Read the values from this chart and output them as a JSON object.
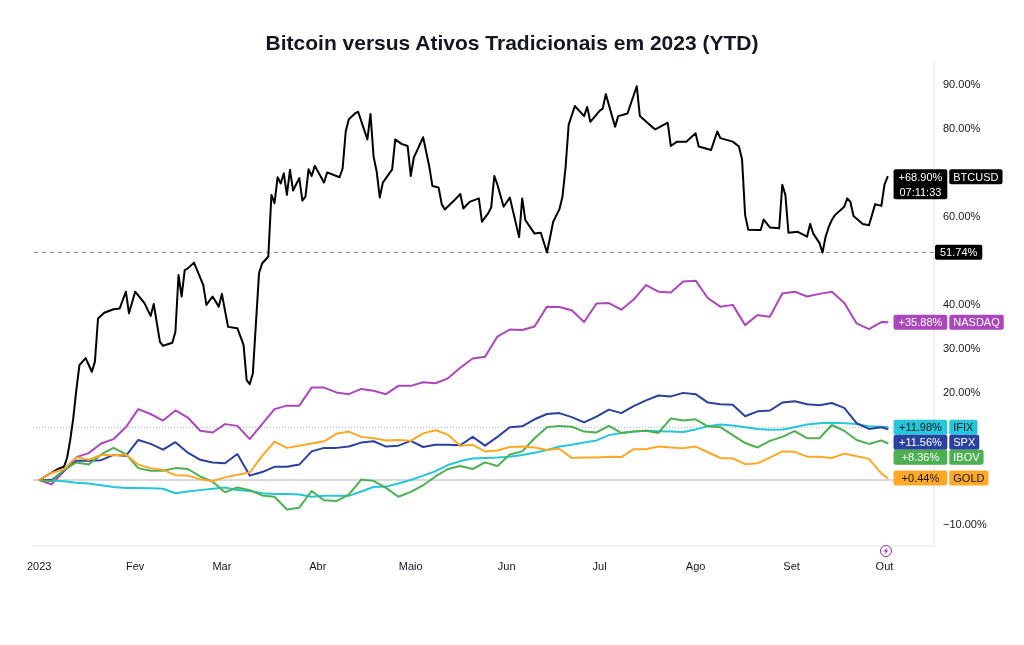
{
  "chart_data": {
    "type": "line",
    "title": "Bitcoin versus Ativos Tradicionais em 2023 (YTD)",
    "x": [
      "2023-01-01",
      "2023-01-05",
      "2023-01-09",
      "2023-01-13",
      "2023-01-17",
      "2023-01-21",
      "2023-01-25",
      "2023-01-29",
      "2023-02-02",
      "2023-02-06",
      "2023-02-10",
      "2023-02-14",
      "2023-02-18",
      "2023-02-22",
      "2023-02-26",
      "2023-03-02",
      "2023-03-06",
      "2023-03-10",
      "2023-03-14",
      "2023-03-18",
      "2023-03-22",
      "2023-03-26",
      "2023-03-30",
      "2023-04-03",
      "2023-04-07",
      "2023-04-11",
      "2023-04-15",
      "2023-04-19",
      "2023-04-23",
      "2023-04-27",
      "2023-05-01",
      "2023-05-05",
      "2023-05-09",
      "2023-05-13",
      "2023-05-17",
      "2023-05-21",
      "2023-05-25",
      "2023-05-29",
      "2023-06-02",
      "2023-06-06",
      "2023-06-10",
      "2023-06-14",
      "2023-06-18",
      "2023-06-22",
      "2023-06-26",
      "2023-06-30",
      "2023-07-04",
      "2023-07-08",
      "2023-07-12",
      "2023-07-16",
      "2023-07-20",
      "2023-07-24",
      "2023-07-28",
      "2023-08-01",
      "2023-08-05",
      "2023-08-09",
      "2023-08-13",
      "2023-08-17",
      "2023-08-21",
      "2023-08-25",
      "2023-08-29",
      "2023-09-02",
      "2023-09-06",
      "2023-09-10",
      "2023-09-14",
      "2023-09-18",
      "2023-09-22",
      "2023-09-26",
      "2023-09-30",
      "2023-10-02"
    ],
    "series": [
      {
        "name": "BTCUSD",
        "color": "#000000",
        "x": [
          "2023-01-01",
          "2023-01-07",
          "2023-01-09",
          "2023-01-10",
          "2023-01-11",
          "2023-01-12",
          "2023-01-13",
          "2023-01-14",
          "2023-01-16",
          "2023-01-18",
          "2023-01-19",
          "2023-01-20",
          "2023-01-22",
          "2023-01-25",
          "2023-01-27",
          "2023-01-29",
          "2023-01-30",
          "2023-02-01",
          "2023-02-04",
          "2023-02-06",
          "2023-02-07",
          "2023-02-09",
          "2023-02-10",
          "2023-02-13",
          "2023-02-14",
          "2023-02-15",
          "2023-02-16",
          "2023-02-17",
          "2023-02-18",
          "2023-02-20",
          "2023-02-23",
          "2023-02-24",
          "2023-02-26",
          "2023-02-28",
          "2023-03-01",
          "2023-03-03",
          "2023-03-06",
          "2023-03-08",
          "2023-03-09",
          "2023-03-10",
          "2023-03-11",
          "2023-03-12",
          "2023-03-13",
          "2023-03-14",
          "2023-03-16",
          "2023-03-17",
          "2023-03-18",
          "2023-03-19",
          "2023-03-20",
          "2023-03-21",
          "2023-03-22",
          "2023-03-23",
          "2023-03-24",
          "2023-03-26",
          "2023-03-27",
          "2023-03-28",
          "2023-03-29",
          "2023-03-30",
          "2023-03-31",
          "2023-04-03",
          "2023-04-04",
          "2023-04-08",
          "2023-04-09",
          "2023-04-10",
          "2023-04-11",
          "2023-04-13",
          "2023-04-14",
          "2023-04-17",
          "2023-04-18",
          "2023-04-19",
          "2023-04-20",
          "2023-04-21",
          "2023-04-22",
          "2023-04-25",
          "2023-04-26",
          "2023-04-28",
          "2023-04-30",
          "2023-05-01",
          "2023-05-02",
          "2023-05-03",
          "2023-05-05",
          "2023-05-07",
          "2023-05-08",
          "2023-05-10",
          "2023-05-11",
          "2023-05-12",
          "2023-05-15",
          "2023-05-17",
          "2023-05-18",
          "2023-05-20",
          "2023-05-23",
          "2023-05-24",
          "2023-05-26",
          "2023-05-27",
          "2023-05-28",
          "2023-05-29",
          "2023-05-31",
          "2023-06-02",
          "2023-06-05",
          "2023-06-06",
          "2023-06-07",
          "2023-06-10",
          "2023-06-12",
          "2023-06-14",
          "2023-06-15",
          "2023-06-16",
          "2023-06-18",
          "2023-06-19",
          "2023-06-20",
          "2023-06-21",
          "2023-06-23",
          "2023-06-26",
          "2023-06-27",
          "2023-06-28",
          "2023-07-01",
          "2023-07-02",
          "2023-07-03",
          "2023-07-06",
          "2023-07-07",
          "2023-07-10",
          "2023-07-13",
          "2023-07-14",
          "2023-07-18",
          "2023-07-19",
          "2023-07-23",
          "2023-07-24",
          "2023-07-26",
          "2023-07-29",
          "2023-08-01",
          "2023-08-02",
          "2023-08-06",
          "2023-08-08",
          "2023-08-09",
          "2023-08-13",
          "2023-08-15",
          "2023-08-16",
          "2023-08-17",
          "2023-08-18",
          "2023-08-22",
          "2023-08-23",
          "2023-08-25",
          "2023-08-28",
          "2023-08-29",
          "2023-08-30",
          "2023-08-31",
          "2023-09-03",
          "2023-09-06",
          "2023-09-07",
          "2023-09-08",
          "2023-09-10",
          "2023-09-11",
          "2023-09-12",
          "2023-09-13",
          "2023-09-14",
          "2023-09-15",
          "2023-09-18",
          "2023-09-19",
          "2023-09-20",
          "2023-09-21",
          "2023-09-24",
          "2023-09-26",
          "2023-09-28",
          "2023-09-30",
          "2023-10-01",
          "2023-10-02"
        ],
        "values": [
          0,
          2.5,
          3,
          5,
          9,
          14,
          20.5,
          26.1,
          27.7,
          24.6,
          26.9,
          36.7,
          38,
          38.8,
          39,
          42.8,
          37.9,
          42.8,
          40.2,
          37.3,
          40,
          31.4,
          30.5,
          31.2,
          33.7,
          46.6,
          41.7,
          47.7,
          48.1,
          49.4,
          44.3,
          39.8,
          41.7,
          39.4,
          42.3,
          34.8,
          34.5,
          30.7,
          22.7,
          21.8,
          24.2,
          35.6,
          47,
          49.2,
          50.8,
          64.8,
          62.9,
          68.8,
          67.4,
          69.7,
          64.8,
          70.5,
          65.8,
          68.6,
          63.5,
          64.4,
          70.6,
          69.1,
          71.4,
          67.6,
          69.9,
          68.8,
          70.8,
          79.2,
          82,
          83.3,
          83.7,
          77.4,
          83.2,
          73.5,
          70.1,
          64.2,
          67.6,
          70.6,
          77.4,
          76.4,
          75.9,
          69.1,
          73.3,
          74.8,
          77.9,
          71.2,
          66.8,
          66.5,
          62.7,
          61.5,
          63.5,
          65,
          61.7,
          63.2,
          64,
          58.7,
          60.6,
          62,
          69.1,
          67.1,
          62.1,
          64.2,
          55.2,
          64,
          59.1,
          56,
          56.2,
          51.7,
          55.1,
          58.7,
          61.5,
          64.4,
          71,
          80.7,
          85,
          82.7,
          84.8,
          81.4,
          83.9,
          84.4,
          87.7,
          80.3,
          82.7,
          83.3,
          89.5,
          82.7,
          80.2,
          79.7,
          81.2,
          75.9,
          76.9,
          76.9,
          78.8,
          75.8,
          75,
          79.2,
          77.7,
          76.9,
          75.8,
          72.9,
          60.2,
          56.9,
          56.8,
          59.2,
          57.4,
          57.2,
          67.1,
          64.8,
          56.2,
          56.4,
          55.3,
          58.2,
          56,
          53.9,
          51.7,
          55.3,
          57.5,
          59.1,
          60.2,
          62.1,
          64,
          63.2,
          60,
          58.2,
          57.9,
          62.7,
          62.3,
          67.1,
          68.9
        ],
        "value_labels": [
          null,
          null,
          null,
          null,
          null,
          null,
          null,
          null,
          null,
          null,
          null,
          null,
          null,
          null,
          null,
          null,
          null,
          null,
          null,
          null,
          null,
          null,
          null,
          null,
          null,
          null,
          null,
          null,
          null,
          null,
          null,
          null,
          null,
          null,
          null,
          null,
          null,
          null,
          null,
          null,
          null,
          null,
          null,
          null,
          null,
          null,
          null,
          null,
          null,
          null,
          null,
          null,
          null,
          null,
          null,
          null,
          null,
          null,
          null,
          null,
          null,
          null,
          null,
          null,
          null,
          null,
          null,
          null,
          null,
          null,
          null,
          null,
          null,
          null,
          null,
          null,
          null,
          null,
          null,
          null,
          null,
          null,
          null,
          null,
          null,
          null,
          null,
          null,
          null,
          null,
          null,
          null,
          null,
          null,
          null,
          null,
          null,
          null,
          null,
          null,
          null,
          null,
          null,
          null,
          null,
          null,
          null,
          null,
          null,
          null,
          null,
          null,
          null,
          null,
          null,
          null,
          null,
          null,
          null,
          null,
          null,
          null,
          null,
          null,
          null,
          null,
          null,
          null,
          null,
          null,
          null,
          null,
          null,
          null,
          null,
          null,
          null,
          null,
          null,
          null,
          null,
          null,
          null,
          null,
          null,
          null,
          null,
          null,
          null,
          null,
          null,
          null,
          null,
          null,
          null,
          null,
          null,
          null,
          null,
          null,
          null,
          null,
          null,
          null,
          "+68.90%"
        ]
      },
      {
        "name": "NASDAQ",
        "color": "#ab47bc",
        "values": [
          0,
          -1,
          2,
          5.2,
          6.1,
          8.3,
          9.3,
          12,
          16.1,
          15,
          13.5,
          15.8,
          14.2,
          11.2,
          10.8,
          12.7,
          12.3,
          9.3,
          12.7,
          16.1,
          16.9,
          16.9,
          21,
          21,
          19.9,
          19.5,
          20.7,
          20.3,
          19.5,
          21.4,
          21.4,
          22.2,
          22,
          23.1,
          25.5,
          27.6,
          28,
          32.6,
          34.2,
          34.1,
          34.9,
          39.4,
          39.3,
          38.6,
          35.9,
          40.1,
          40.2,
          38.7,
          41,
          44.3,
          42.8,
          42.6,
          45.1,
          45.3,
          41.3,
          39.4,
          39.8,
          35.2,
          37.5,
          37.1,
          42.4,
          42.8,
          41.7,
          42.3,
          42.8,
          40.3,
          35.6,
          34.3,
          35.9,
          35.88
        ],
        "value_labels": [
          null,
          null,
          null,
          null,
          null,
          null,
          null,
          null,
          null,
          null,
          null,
          null,
          null,
          null,
          null,
          null,
          null,
          null,
          null,
          null,
          null,
          null,
          null,
          null,
          null,
          null,
          null,
          null,
          null,
          null,
          null,
          null,
          null,
          null,
          null,
          null,
          null,
          null,
          null,
          null,
          null,
          null,
          null,
          null,
          null,
          null,
          null,
          null,
          null,
          null,
          null,
          null,
          null,
          null,
          null,
          null,
          null,
          null,
          null,
          null,
          null,
          null,
          null,
          null,
          null,
          null,
          null,
          null,
          null,
          "+35.88%"
        ]
      },
      {
        "name": "IFIX",
        "color": "#26c6da",
        "values": [
          0,
          -0.1,
          -0.3,
          -0.6,
          -0.8,
          -1.2,
          -1.6,
          -1.8,
          -1.8,
          -1.9,
          -2,
          -3,
          -2.6,
          -2.3,
          -2,
          -1.7,
          -2.3,
          -2.5,
          -3,
          -3.2,
          -3.2,
          -3.3,
          -3.8,
          -3.6,
          -3.6,
          -3.6,
          -2.6,
          -1.6,
          -1.5,
          -0.8,
          0,
          1,
          2,
          3.4,
          4.3,
          4.9,
          5,
          5.1,
          5.3,
          5.7,
          6.2,
          6.8,
          7.6,
          8,
          8.5,
          9,
          10.2,
          10.7,
          11,
          11.2,
          11.1,
          11,
          10.9,
          11.5,
          12.2,
          12.6,
          12.4,
          12,
          11.6,
          11.4,
          11.5,
          12,
          12.6,
          12.9,
          13,
          12.9,
          12.7,
          12.2,
          12.1,
          11.98
        ],
        "value_labels": [
          null,
          null,
          null,
          null,
          null,
          null,
          null,
          null,
          null,
          null,
          null,
          null,
          null,
          null,
          null,
          null,
          null,
          null,
          null,
          null,
          null,
          null,
          null,
          null,
          null,
          null,
          null,
          null,
          null,
          null,
          null,
          null,
          null,
          null,
          null,
          null,
          null,
          null,
          null,
          null,
          null,
          null,
          null,
          null,
          null,
          null,
          null,
          null,
          null,
          null,
          null,
          null,
          null,
          null,
          null,
          null,
          null,
          null,
          null,
          null,
          null,
          null,
          null,
          null,
          null,
          null,
          null,
          null,
          null,
          "+11.98%"
        ]
      },
      {
        "name": "SPX",
        "color": "#2a41a0",
        "values": [
          0,
          0,
          2.1,
          4.4,
          4.4,
          4.5,
          5.7,
          5.5,
          9.1,
          8.2,
          6.9,
          8.6,
          6.2,
          4.6,
          4,
          3.8,
          5.9,
          1,
          1.8,
          3,
          3,
          3.5,
          6.5,
          7.3,
          7.3,
          7.6,
          8.5,
          8.8,
          7.6,
          7.8,
          8.9,
          7.5,
          8,
          8,
          7.9,
          9.8,
          7.8,
          9.8,
          12,
          12.2,
          13.8,
          15,
          15.2,
          14.3,
          13.1,
          14.4,
          16,
          15.2,
          16.8,
          18.1,
          19.2,
          19,
          19.8,
          19.5,
          17.6,
          17.2,
          17.1,
          14.5,
          15.6,
          15.8,
          17.6,
          17.9,
          17.2,
          17,
          17.5,
          16.4,
          12.9,
          11.6,
          12,
          11.56
        ],
        "value_labels": [
          null,
          null,
          null,
          null,
          null,
          null,
          null,
          null,
          null,
          null,
          null,
          null,
          null,
          null,
          null,
          null,
          null,
          null,
          null,
          null,
          null,
          null,
          null,
          null,
          null,
          null,
          null,
          null,
          null,
          null,
          null,
          null,
          null,
          null,
          null,
          null,
          null,
          null,
          null,
          null,
          null,
          null,
          null,
          null,
          null,
          null,
          null,
          null,
          null,
          null,
          null,
          null,
          null,
          null,
          null,
          null,
          null,
          null,
          null,
          null,
          null,
          null,
          null,
          null,
          null,
          null,
          null,
          null,
          null,
          "+11.56%"
        ]
      },
      {
        "name": "IBOV",
        "color": "#4caf50",
        "values": [
          0,
          -0.3,
          2.3,
          4,
          3.5,
          5.8,
          7.3,
          5.9,
          2.7,
          2.1,
          2.1,
          2.7,
          2.5,
          0.8,
          -0.4,
          -2.8,
          -1.7,
          -2.3,
          -3.5,
          -3.8,
          -6.7,
          -6.3,
          -2.5,
          -4.6,
          -4.8,
          -3.3,
          0.1,
          -0.2,
          -1.8,
          -3.8,
          -2.7,
          -1.2,
          0.8,
          2.5,
          3.2,
          2.5,
          4,
          3.2,
          5.8,
          6.5,
          9.5,
          12,
          12.3,
          12.1,
          11,
          10.8,
          12.3,
          10.7,
          11,
          11.2,
          10.7,
          14,
          13.5,
          13.8,
          12.2,
          12,
          10.2,
          8.4,
          7.4,
          8.9,
          9.8,
          11.1,
          9.5,
          9.5,
          12.5,
          11.2,
          9.1,
          8.2,
          9,
          8.36
        ],
        "value_labels": [
          null,
          null,
          null,
          null,
          null,
          null,
          null,
          null,
          null,
          null,
          null,
          null,
          null,
          null,
          null,
          null,
          null,
          null,
          null,
          null,
          null,
          null,
          null,
          null,
          null,
          null,
          null,
          null,
          null,
          null,
          null,
          null,
          null,
          null,
          null,
          null,
          null,
          null,
          null,
          null,
          null,
          null,
          null,
          null,
          null,
          null,
          null,
          null,
          null,
          null,
          null,
          null,
          null,
          null,
          null,
          null,
          null,
          null,
          null,
          null,
          null,
          null,
          null,
          null,
          null,
          null,
          null,
          null,
          null,
          "+8.36%"
        ]
      },
      {
        "name": "GOLD",
        "color": "#ffa726",
        "values": [
          0,
          1.6,
          2.5,
          5.2,
          4.6,
          5.7,
          5.6,
          5.8,
          3.5,
          2.7,
          2.3,
          1.1,
          1,
          0.2,
          -0.3,
          0.6,
          1.2,
          1.7,
          5.5,
          8.7,
          7.3,
          7.8,
          8.3,
          8.8,
          10.5,
          11,
          9.8,
          9.5,
          9,
          9.1,
          8.9,
          10.6,
          11.3,
          10.3,
          7.8,
          8,
          6.5,
          6.7,
          7.5,
          7.6,
          7.4,
          6.8,
          7.1,
          5,
          5.1,
          5.1,
          5.3,
          5.2,
          7,
          7,
          7.6,
          7.4,
          7.2,
          7.6,
          6.3,
          5,
          4.9,
          3.6,
          3.8,
          5.1,
          6.5,
          6.4,
          5.3,
          5.3,
          5,
          6,
          5.4,
          4.8,
          1.5,
          0.44
        ],
        "value_labels": [
          null,
          null,
          null,
          null,
          null,
          null,
          null,
          null,
          null,
          null,
          null,
          null,
          null,
          null,
          null,
          null,
          null,
          null,
          null,
          null,
          null,
          null,
          null,
          null,
          null,
          null,
          null,
          null,
          null,
          null,
          null,
          null,
          null,
          null,
          null,
          null,
          null,
          null,
          null,
          null,
          null,
          null,
          null,
          null,
          null,
          null,
          null,
          null,
          null,
          null,
          null,
          null,
          null,
          null,
          null,
          null,
          null,
          null,
          null,
          null,
          null,
          null,
          null,
          null,
          null,
          null,
          null,
          null,
          null,
          "+0.44%"
        ]
      }
    ],
    "legend": "right",
    "xlim": [
      "2022-12-30",
      "2023-10-17"
    ],
    "xticks": [
      {
        "value": "2023-01-01",
        "label": "2023"
      },
      {
        "value": "2023-02-01",
        "label": "Fev"
      },
      {
        "value": "2023-03-01",
        "label": "Mar"
      },
      {
        "value": "2023-04-01",
        "label": "Abr"
      },
      {
        "value": "2023-05-01",
        "label": "Maio"
      },
      {
        "value": "2023-06-01",
        "label": "Jun"
      },
      {
        "value": "2023-07-01",
        "label": "Jul"
      },
      {
        "value": "2023-08-01",
        "label": "Ago"
      },
      {
        "value": "2023-09-01",
        "label": "Set"
      },
      {
        "value": "2023-10-01",
        "label": "Out"
      }
    ],
    "ylim": [
      -15,
      95
    ],
    "yticks": [
      {
        "value": -10,
        "label": "−10.00%"
      },
      {
        "value": 20,
        "label": "20.00%"
      },
      {
        "value": 30,
        "label": "30.00%"
      },
      {
        "value": 40,
        "label": "40.00%"
      },
      {
        "value": 60,
        "label": "60.00%"
      },
      {
        "value": 80,
        "label": "80.00%"
      },
      {
        "value": 90,
        "label": "90.00%"
      }
    ],
    "ref_lines": [
      {
        "axis": "y",
        "value": 0,
        "color": "#b2b5be",
        "line_style": "solid"
      },
      {
        "axis": "y",
        "value": 11.98,
        "color": "#9fb0e6",
        "line_style": "dotted"
      },
      {
        "axis": "y",
        "value": 51.74,
        "label": "51.74%",
        "color": "#787b86",
        "line_style": "dashed"
      }
    ],
    "annotations": [
      "07:11:33"
    ]
  }
}
